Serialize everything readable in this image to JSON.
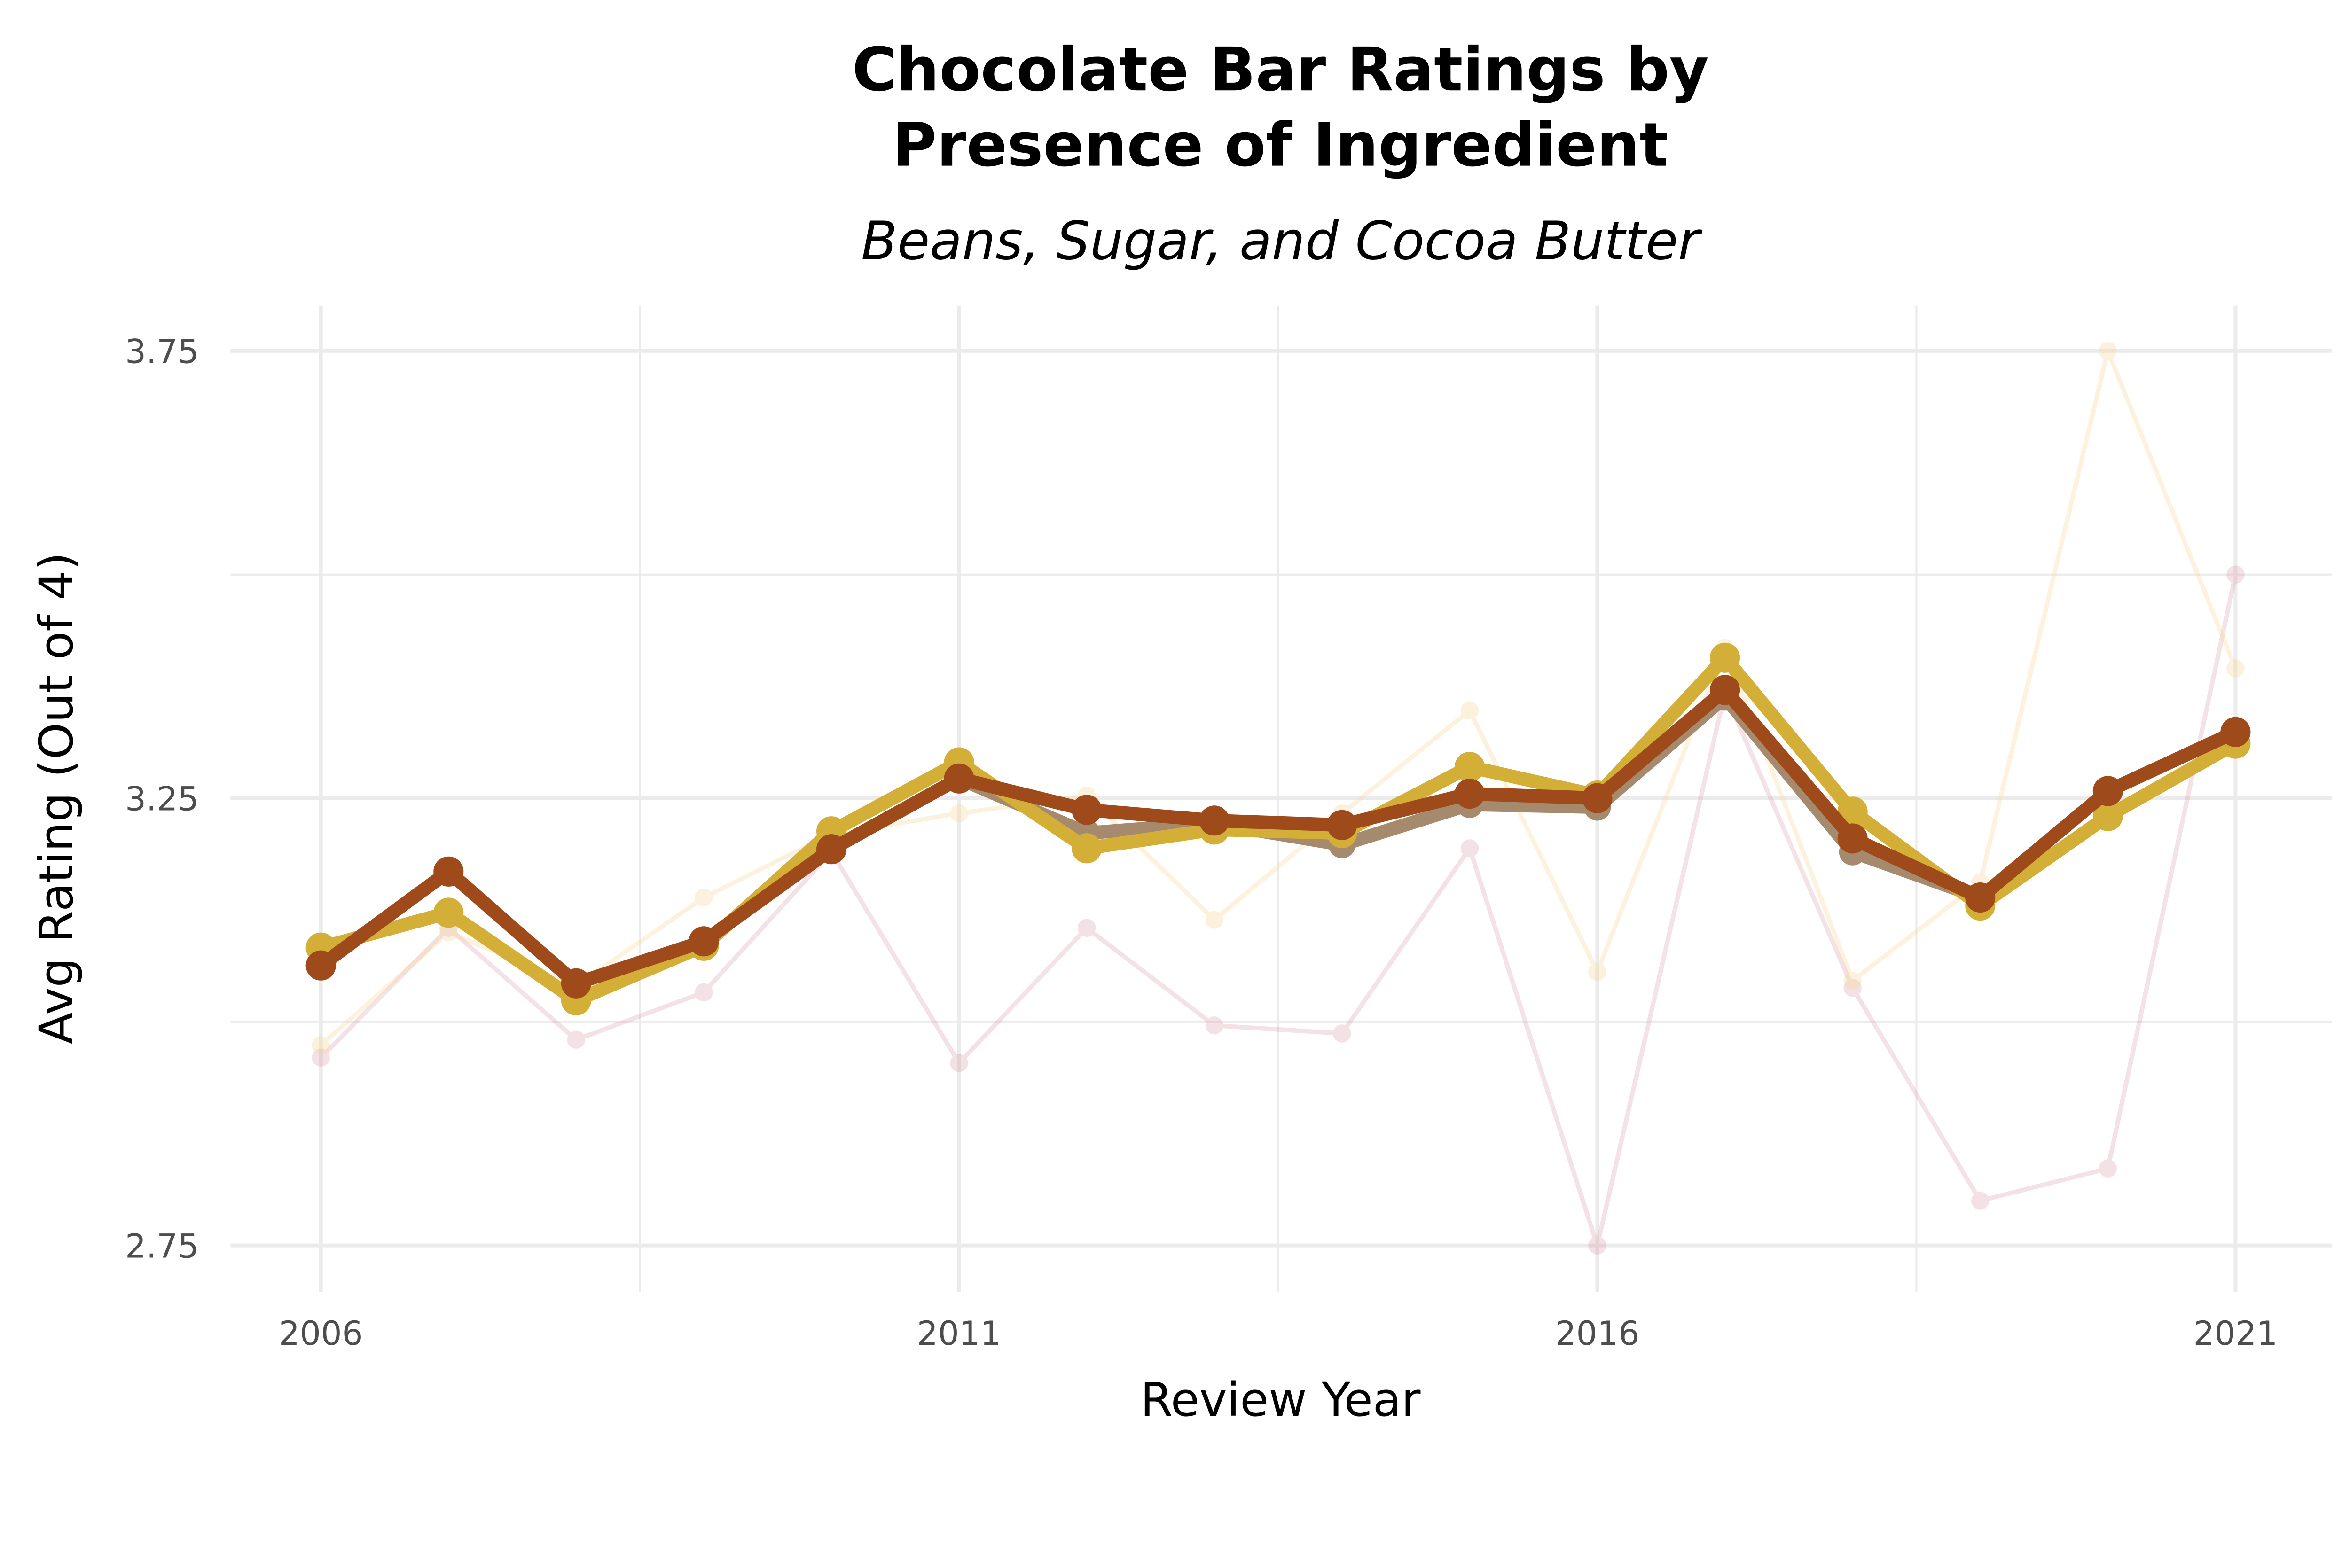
{
  "chart_data": {
    "type": "line",
    "title": "Chocolate Bar Ratings by\nPresence of Ingredient",
    "subtitle": "Beans, Sugar, and Cocoa Butter",
    "xlabel": "Review Year",
    "ylabel": "Avg Rating (Out of 4)",
    "x": [
      2006,
      2007,
      2008,
      2009,
      2010,
      2011,
      2012,
      2013,
      2014,
      2015,
      2016,
      2017,
      2018,
      2019,
      2020,
      2021
    ],
    "xticks": [
      "2006",
      "2011",
      "2016",
      "2021"
    ],
    "yticks": [
      "2.75",
      "3.25",
      "3.75"
    ],
    "ylim": [
      2.7,
      3.8
    ],
    "xlim": [
      2005.3,
      2021.7
    ],
    "grid": true,
    "legend": "none",
    "series": [
      {
        "color": "#D18A9A",
        "opacity": 0.25,
        "width": "thin",
        "values": [
          2.96,
          3.105,
          2.98,
          3.033,
          3.19,
          2.954,
          3.105,
          2.996,
          2.987,
          3.194,
          2.75,
          3.368,
          3.038,
          2.8,
          2.836,
          3.5
        ]
      },
      {
        "color": "#F5D9A0",
        "opacity": 0.35,
        "width": "thin",
        "values": [
          2.974,
          3.1,
          3.04,
          3.139,
          3.21,
          3.233,
          3.253,
          3.114,
          3.233,
          3.348,
          3.056,
          3.418,
          3.046,
          3.156,
          3.75,
          3.395
        ]
      },
      {
        "color": "#A68A6E",
        "opacity": 1,
        "width": "medium",
        "values": [
          3.063,
          3.168,
          3.043,
          3.09,
          3.193,
          3.272,
          3.211,
          3.222,
          3.198,
          3.243,
          3.24,
          3.363,
          3.19,
          3.139,
          3.258,
          3.324
        ]
      },
      {
        "color": "#D4AF37",
        "opacity": 1,
        "width": "thick",
        "values": [
          3.083,
          3.122,
          3.024,
          3.085,
          3.213,
          3.29,
          3.194,
          3.215,
          3.211,
          3.285,
          3.253,
          3.407,
          3.235,
          3.13,
          3.23,
          3.311
        ]
      },
      {
        "color": "#9E4A1B",
        "opacity": 1,
        "width": "thick",
        "values": [
          3.063,
          3.168,
          3.043,
          3.09,
          3.193,
          3.272,
          3.237,
          3.225,
          3.22,
          3.255,
          3.25,
          3.371,
          3.205,
          3.139,
          3.258,
          3.324
        ]
      }
    ]
  }
}
